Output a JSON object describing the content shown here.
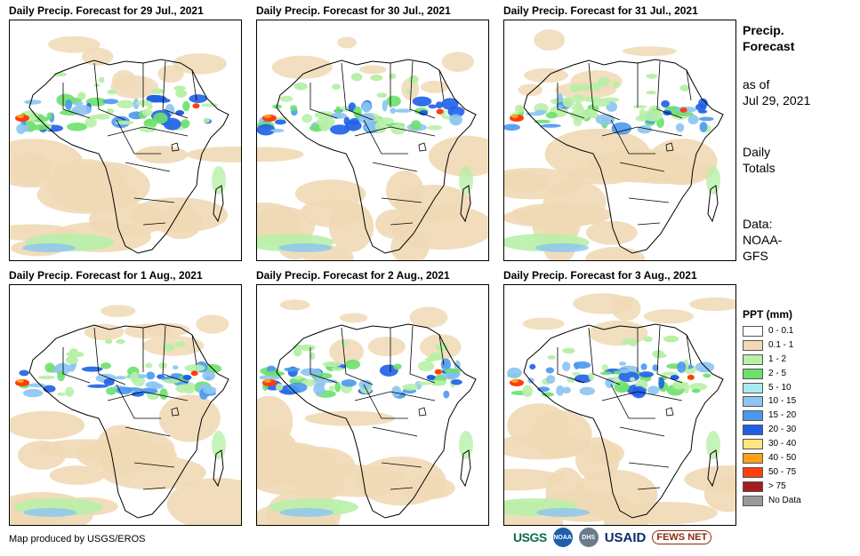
{
  "panels": [
    {
      "title": "Daily Precip. Forecast for 29 Jul., 2021"
    },
    {
      "title": "Daily Precip. Forecast for 30 Jul., 2021"
    },
    {
      "title": "Daily Precip. Forecast for 31 Jul., 2021"
    },
    {
      "title": "Daily Precip. Forecast for 1 Aug., 2021"
    },
    {
      "title": "Daily Precip. Forecast for 2 Aug., 2021"
    },
    {
      "title": "Daily Precip. Forecast for 3 Aug., 2021"
    }
  ],
  "side": {
    "title_line1": "Precip.",
    "title_line2": "Forecast",
    "asof_line1": "as of",
    "asof_line2": "Jul 29, 2021",
    "daily_line1": "Daily",
    "daily_line2": "Totals",
    "data_line1": "Data:",
    "data_line2": "NOAA-",
    "data_line3": "GFS"
  },
  "legend": {
    "title": "PPT (mm)",
    "items": [
      {
        "label": "0 - 0.1",
        "color": "#ffffff"
      },
      {
        "label": "0.1 - 1",
        "color": "#f0d9b5"
      },
      {
        "label": "1 - 2",
        "color": "#b8f0a8"
      },
      {
        "label": "2 - 5",
        "color": "#6de06d"
      },
      {
        "label": "5 - 10",
        "color": "#a8ecf0"
      },
      {
        "label": "10 - 15",
        "color": "#8cc4f2"
      },
      {
        "label": "15 - 20",
        "color": "#4a98ee"
      },
      {
        "label": "20 - 30",
        "color": "#1e5fe8"
      },
      {
        "label": "30 - 40",
        "color": "#ffe680"
      },
      {
        "label": "40 - 50",
        "color": "#ff9f1a"
      },
      {
        "label": "50 - 75",
        "color": "#ff3d0d"
      },
      {
        "label": "> 75",
        "color": "#a61c1c"
      },
      {
        "label": "No Data",
        "color": "#999999"
      }
    ]
  },
  "footer": {
    "credit": "Map produced by USGS/EROS"
  },
  "logos": {
    "usgs": "USGS",
    "noaa": "NOAA",
    "dhs": "DHS",
    "usaid": "USAID",
    "fews": "FEWS NET"
  }
}
